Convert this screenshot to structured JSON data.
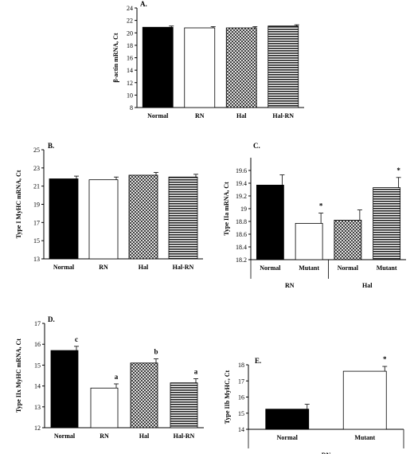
{
  "chart_data": [
    {
      "panel": "A.",
      "type": "bar",
      "ylabel": "β-actin mRNA, Ct",
      "ylim": [
        8,
        24
      ],
      "yticks": [
        8,
        10,
        12,
        14,
        16,
        18,
        20,
        22,
        24
      ],
      "categories": [
        "Normal",
        "RN",
        "Hal",
        "Hal-RN"
      ],
      "values": [
        20.9,
        20.8,
        20.8,
        21.1
      ],
      "errors": [
        0.2,
        0.2,
        0.2,
        0.2
      ],
      "annotations": [
        "",
        "",
        "",
        ""
      ],
      "fills": [
        "black",
        "white",
        "cross",
        "stripe"
      ]
    },
    {
      "panel": "B.",
      "type": "bar",
      "ylabel": "Type I MyHC mRNA, Ct",
      "ylim": [
        13,
        25
      ],
      "yticks": [
        13,
        15,
        17,
        19,
        21,
        23,
        25
      ],
      "categories": [
        "Normal",
        "RN",
        "Hal",
        "Hal-RN"
      ],
      "values": [
        21.8,
        21.7,
        22.2,
        22.0
      ],
      "errors": [
        0.3,
        0.3,
        0.3,
        0.3
      ],
      "annotations": [
        "",
        "",
        "",
        ""
      ],
      "fills": [
        "black",
        "white",
        "cross",
        "stripe"
      ]
    },
    {
      "panel": "C.",
      "type": "bar",
      "ylabel": "Type IIa mRNA, Ct",
      "ylim": [
        18.2,
        19.8
      ],
      "yticks": [
        18.2,
        18.4,
        18.6,
        18.8,
        19,
        19.2,
        19.4,
        19.6
      ],
      "categories": [
        "Normal",
        "Mutant",
        "Normal",
        "Mutant"
      ],
      "groups": [
        "RN",
        "Hal"
      ],
      "values": [
        19.37,
        18.77,
        18.82,
        19.33
      ],
      "errors": [
        0.16,
        0.16,
        0.16,
        0.16
      ],
      "annotations": [
        "",
        "*",
        "",
        "*"
      ],
      "fills": [
        "black",
        "white",
        "cross",
        "stripe"
      ]
    },
    {
      "panel": "D.",
      "type": "bar",
      "ylabel": "Type IIx MyHC mRNA, Ct",
      "ylim": [
        12,
        17
      ],
      "yticks": [
        12,
        13,
        14,
        15,
        16,
        17
      ],
      "categories": [
        "Normal",
        "RN",
        "Hal",
        "Hal-RN"
      ],
      "values": [
        15.7,
        13.9,
        15.1,
        14.15
      ],
      "errors": [
        0.2,
        0.2,
        0.2,
        0.2
      ],
      "annotations": [
        "c",
        "a",
        "b",
        "a"
      ],
      "fills": [
        "black",
        "white",
        "cross",
        "stripe"
      ]
    },
    {
      "panel": "E.",
      "type": "bar",
      "ylabel": "Type IIb MyHC, Ct",
      "ylim": [
        14,
        18
      ],
      "yticks": [
        14,
        15,
        16,
        17,
        18
      ],
      "categories": [
        "Normal",
        "Mutant"
      ],
      "groups": [
        "RN"
      ],
      "values": [
        15.25,
        17.6
      ],
      "errors": [
        0.3,
        0.3
      ],
      "annotations": [
        "",
        "*"
      ],
      "fills": [
        "black",
        "white"
      ]
    }
  ]
}
